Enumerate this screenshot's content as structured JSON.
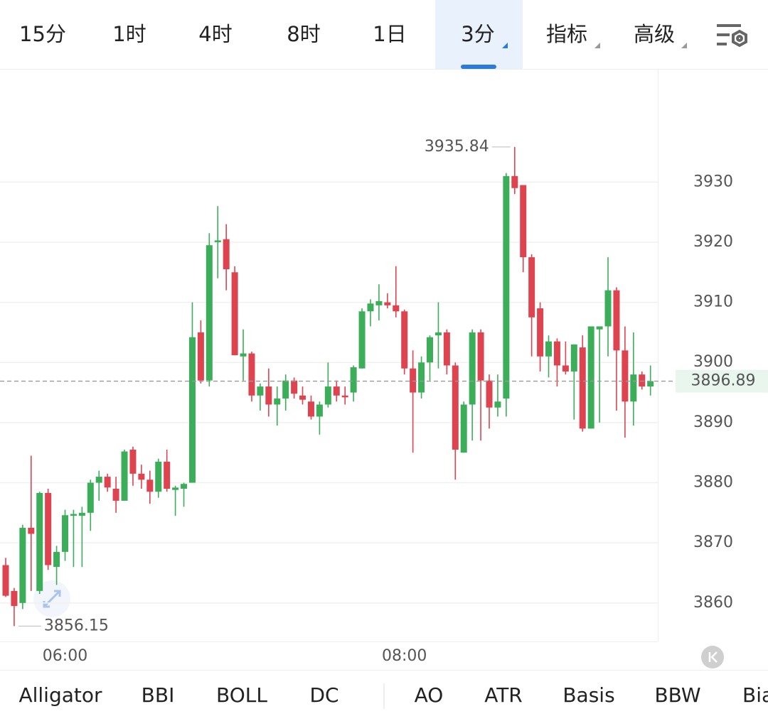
{
  "tabs": [
    "15分",
    "1时",
    "4时",
    "8时",
    "1日",
    "3分",
    "指标",
    "高级"
  ],
  "indicators": [
    "Alligator",
    "BBI",
    "BOLL",
    "DC",
    "AO",
    "ATR",
    "Basis",
    "BBW",
    "Bia"
  ],
  "chart_data": {
    "type": "candlestick",
    "up_color": "#3cae5a",
    "down_color": "#de4450",
    "categories": [
      null,
      null,
      null,
      null,
      null,
      null,
      null,
      "06:00",
      null,
      null,
      null,
      null,
      null,
      null,
      null,
      null,
      null,
      null,
      null,
      null,
      null,
      null,
      null,
      null,
      null,
      null,
      null,
      null,
      null,
      null,
      null,
      null,
      null,
      null,
      null,
      null,
      null,
      null,
      null,
      null,
      null,
      null,
      null,
      null,
      null,
      null,
      null,
      "08:00",
      null,
      null,
      null,
      null,
      null,
      null,
      null,
      null,
      null,
      null,
      null,
      null,
      null,
      null,
      null,
      null,
      null,
      null,
      null,
      null,
      null,
      null,
      null,
      null,
      null,
      null,
      null,
      null,
      null
    ],
    "open": [
      3866.3,
      3862,
      3860,
      3872.5,
      3862,
      3878.3,
      3866,
      3868.5,
      3874.5,
      3874.5,
      3875,
      3880,
      3881,
      3879,
      3877,
      3885.5,
      3881.5,
      3880.5,
      3878.5,
      3883.5,
      3878.8,
      3879,
      3880,
      3905,
      3897,
      3920,
      3920.5,
      3915,
      3901,
      3901.5,
      3894.5,
      3896,
      3893,
      3894,
      3897,
      3894.5,
      3893.5,
      3891,
      3893,
      3896,
      3894.5,
      3895,
      3899,
      3908.5,
      3909.5,
      3910,
      3909.5,
      3908.5,
      3899,
      3895,
      3900,
      3904.5,
      3905,
      3899.5,
      3885,
      3893,
      3905,
      3897,
      3892.5,
      3894,
      3931,
      3929.5,
      3917.5,
      3909,
      3901,
      3903.5,
      3899.5,
      3898.5,
      3902.5,
      3889,
      3905.5,
      3906,
      3912,
      3902,
      3893.5,
      3898,
      3896
    ],
    "high": [
      3867.5,
      3862.5,
      3873,
      3884.5,
      3878.5,
      3879,
      3869.5,
      3875.5,
      3875.5,
      3876,
      3880.5,
      3882,
      3881.5,
      3881,
      3885.5,
      3886,
      3883,
      3882,
      3884,
      3885.5,
      3879.5,
      3880,
      3910,
      3907,
      3921.5,
      3926,
      3923,
      3916,
      3905.5,
      3901.8,
      3896.5,
      3899,
      3896,
      3898,
      3897.5,
      3896,
      3894.5,
      3893.5,
      3900,
      3897,
      3896,
      3899.5,
      3909,
      3910.5,
      3913,
      3911.5,
      3916,
      3908.8,
      3902,
      3901,
      3904.5,
      3910,
      3905.5,
      3900,
      3893.5,
      3905.5,
      3905.5,
      3898,
      3898,
      3931.5,
      3935.84,
      3929.5,
      3918,
      3910,
      3904.5,
      3904,
      3903.5,
      3903,
      3904.5,
      3906,
      3906,
      3917.5,
      3912.5,
      3906,
      3905,
      3898.5,
      3899.5
    ],
    "low": [
      3861,
      3856.15,
      3859,
      3862,
      3861.5,
      3865.5,
      3863,
      3867,
      3866,
      3866,
      3872,
      3877,
      3878.5,
      3875,
      3877,
      3879.5,
      3879,
      3876.5,
      3877.5,
      3878.5,
      3874.5,
      3876,
      3880,
      3896.5,
      3896,
      3914,
      3912,
      3901.5,
      3897,
      3893.5,
      3892,
      3891,
      3889.5,
      3892,
      3894,
      3893,
      3890.5,
      3888,
      3892.5,
      3893.5,
      3893,
      3893.5,
      3899,
      3906,
      3907,
      3909,
      3907.5,
      3898,
      3885,
      3894,
      3897,
      3899,
      3898,
      3880.5,
      3885,
      3887,
      3887,
      3889,
      3891,
      3891,
      3928,
      3915,
      3901,
      3898.5,
      3897.5,
      3896,
      3898,
      3890.5,
      3888.5,
      3889,
      3890,
      3901,
      3892,
      3887.5,
      3889.5,
      3895.5,
      3894.5
    ],
    "close": [
      3861.2,
      3859.5,
      3872.5,
      3871.5,
      3878.3,
      3866.3,
      3868.5,
      3874.6,
      3874.8,
      3875,
      3880,
      3881,
      3879.2,
      3877,
      3885.2,
      3881.5,
      3880.5,
      3878.5,
      3883.5,
      3879,
      3879.2,
      3879.8,
      3904.2,
      3897,
      3919.5,
      3920.3,
      3915.5,
      3901.2,
      3901.5,
      3894.5,
      3896,
      3893,
      3894,
      3897,
      3894.8,
      3893.8,
      3891,
      3893,
      3896,
      3894.5,
      3894.2,
      3899.2,
      3908.5,
      3909.8,
      3910.2,
      3909.5,
      3908.5,
      3899,
      3895,
      3900,
      3904.2,
      3905,
      3899.5,
      3885.5,
      3893,
      3905,
      3897,
      3892.5,
      3893.5,
      3931,
      3929,
      3917.5,
      3907.5,
      3901,
      3903.5,
      3899.5,
      3898.5,
      3903,
      3889,
      3906,
      3906,
      3912,
      3902,
      3893.5,
      3898,
      3896,
      3896.89
    ],
    "ylim": [
      3853.6,
      3948.7
    ],
    "yticks": [
      3860,
      3870,
      3880,
      3890,
      3900,
      3910,
      3920,
      3930
    ],
    "grid": true
  }
}
